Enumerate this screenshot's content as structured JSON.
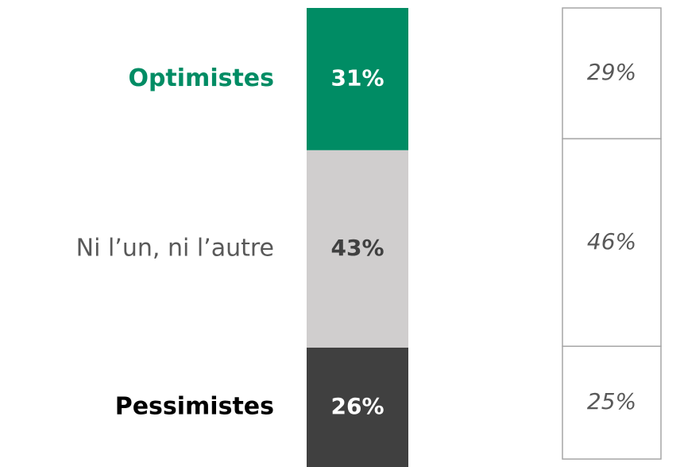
{
  "chart_data": {
    "type": "bar",
    "stacked": true,
    "categories": [
      "Optimistes",
      "Ni l’un, ni l’autre",
      "Pessimistes"
    ],
    "series": [
      {
        "colors": [
          "#008c64",
          "#d0cece",
          "#404040"
        ],
        "label_colors": [
          "#ffffff",
          "#404040",
          "#ffffff"
        ],
        "values": [
          31,
          43,
          26
        ],
        "value_labels": [
          "31%",
          "43%",
          "26%"
        ]
      },
      {
        "colors": [
          "#ffffff",
          "#ffffff",
          "#ffffff"
        ],
        "border": "#a6a6a6",
        "values": [
          29,
          46,
          25
        ],
        "value_labels": [
          "29%",
          "46%",
          "25%"
        ]
      }
    ]
  }
}
